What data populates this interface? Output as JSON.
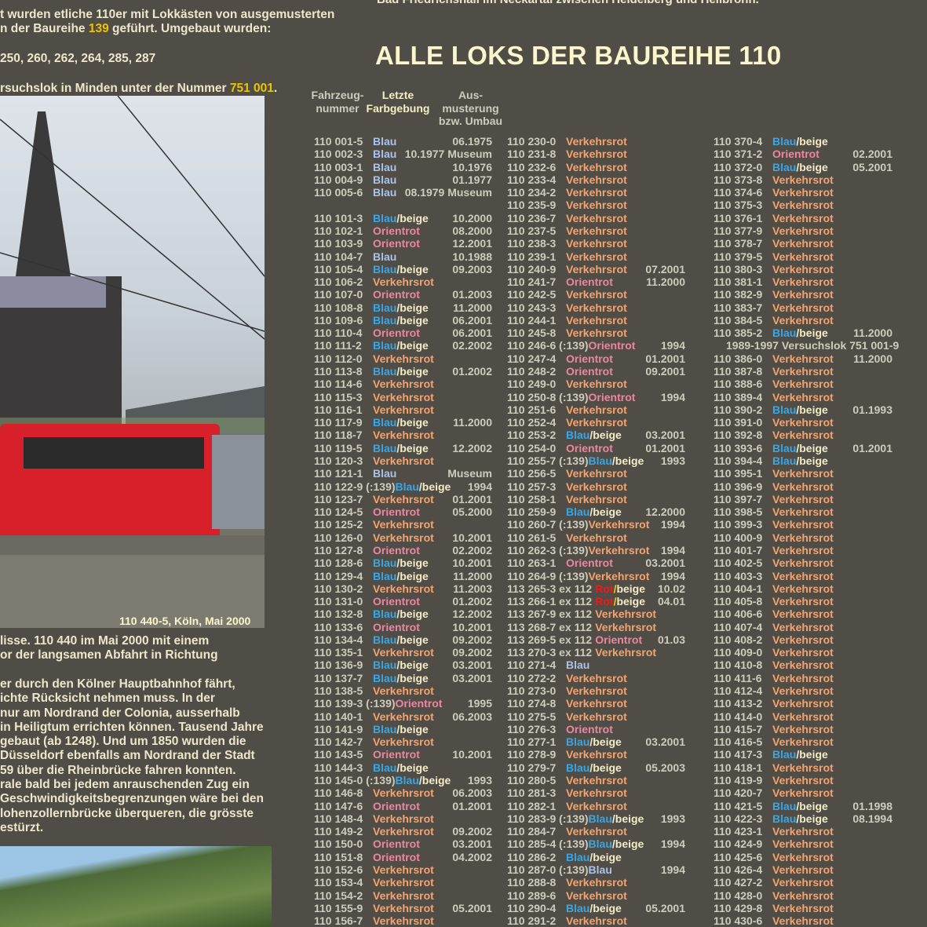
{
  "left_text": {
    "lines_top": [
      [
        "t wurden etliche 110er mit Lokkästen von ausgemusterten",
        "",
        ""
      ],
      [
        "n der Baureihe ",
        "139",
        " geführt. Umgebaut wurden:"
      ],
      [
        "250, 260, 262, 264, 285, 287",
        "",
        ""
      ],
      [
        "rsuchslok in Minden unter der Nummer ",
        "751 001",
        "."
      ]
    ],
    "caption": "110 440-5, Köln, Mai 2000",
    "lines_bottom": [
      "lisse. 110 440 im Mai 2000 mit einem",
      "or der langsamen Abfahrt in Richtung",
      "",
      "er durch den Kölner Hauptbahnhof fährt,",
      "ichte Rücksicht nehmen muss. In der",
      "nur am Nordrand der Colonia, ausserhalb",
      "in Heiligtum errichten können. Tausend Jahre",
      "gebaut (ab 1248). Und um 1850 wurden die",
      "Düsseldorf ebenfalls am Nordrand der Stadt",
      "59 über die Rheinbrücke fahren konnten.",
      "rale bald bei jedem anrauschenden Zug ein",
      "Geschwindigkeitsbegrenzungen wäre bei den",
      "lohenzollernbrücke überqueren, die grösste",
      "estürzt."
    ]
  },
  "top_text": "Bad Friedrichshall im Neckartal zwischen Heidelberg und Heilbronn.",
  "title": "ALLE LOKS DER BAUREIHE 110",
  "headers": {
    "number": "Fahrzeug-\nnummer",
    "color": "Letzte\nFarbgebung",
    "date": "Aus-\nmusterung\nbzw. Umbau"
  },
  "liveries": {
    "B": {
      "parts": [
        [
          "Blau",
          "#a9c3ea"
        ]
      ]
    },
    "BB": {
      "parts": [
        [
          "Blau",
          "#3aa6e6"
        ],
        [
          "/",
          "#f4ecc8"
        ],
        [
          "beige",
          "#f4ecc8"
        ]
      ]
    },
    "O": {
      "parts": [
        [
          "Orientrot",
          "#ec86a2"
        ]
      ]
    },
    "V": {
      "parts": [
        [
          "Verkehrsrot",
          "#f4a472"
        ]
      ]
    },
    "RB": {
      "parts": [
        [
          "Rot",
          "#e81c1c"
        ],
        [
          "/",
          "#e8c800"
        ],
        [
          "beige",
          "#f4ecc8"
        ]
      ]
    }
  },
  "columns": [
    [
      [
        "110 001-5",
        "",
        "B",
        "06.1975"
      ],
      [
        "110 002-3",
        "",
        "B",
        "10.1977 Museum"
      ],
      [
        "110 003-1",
        "",
        "B",
        "10.1976"
      ],
      [
        "110 004-9",
        "",
        "B",
        "01.1977"
      ],
      [
        "110 005-6",
        "",
        "B",
        "08.1979 Museum"
      ],
      null,
      [
        "110 101-3",
        "",
        "BB",
        "10.2000"
      ],
      [
        "110 102-1",
        "",
        "O",
        "08.2000"
      ],
      [
        "110 103-9",
        "",
        "O",
        "12.2001"
      ],
      [
        "110 104-7",
        "",
        "B",
        "10.1988"
      ],
      [
        "110 105-4",
        "",
        "BB",
        "09.2003"
      ],
      [
        "110 106-2",
        "",
        "V",
        ""
      ],
      [
        "110 107-0",
        "",
        "O",
        "01.2003"
      ],
      [
        "110 108-8",
        "",
        "BB",
        "11.2000"
      ],
      [
        "110 109-6",
        "",
        "BB",
        "06.2001"
      ],
      [
        "110 110-4",
        "",
        "O",
        "06.2001"
      ],
      [
        "110 111-2",
        "",
        "BB",
        "02.2002"
      ],
      [
        "110 112-0",
        "",
        "V",
        ""
      ],
      [
        "110 113-8",
        "",
        "BB",
        "01.2002"
      ],
      [
        "110 114-6",
        "",
        "V",
        ""
      ],
      [
        "110 115-3",
        "",
        "V",
        ""
      ],
      [
        "110 116-1",
        "",
        "V",
        ""
      ],
      [
        "110 117-9",
        "",
        "BB",
        "11.2000"
      ],
      [
        "110 118-7",
        "",
        "V",
        ""
      ],
      [
        "110 119-5",
        "",
        "BB",
        "12.2002"
      ],
      [
        "110 120-3",
        "",
        "V",
        ""
      ],
      [
        "110 121-1",
        "",
        "B",
        "Museum"
      ],
      [
        "110 122-9",
        "(:139)",
        "BB",
        "1994"
      ],
      [
        "110 123-7",
        "",
        "V",
        "01.2001"
      ],
      [
        "110 124-5",
        "",
        "O",
        "05.2000"
      ],
      [
        "110 125-2",
        "",
        "V",
        ""
      ],
      [
        "110 126-0",
        "",
        "V",
        "10.2001"
      ],
      [
        "110 127-8",
        "",
        "O",
        "02.2002"
      ],
      [
        "110 128-6",
        "",
        "BB",
        "10.2001"
      ],
      [
        "110 129-4",
        "",
        "BB",
        "11.2000"
      ],
      [
        "110 130-2",
        "",
        "V",
        "11.2003"
      ],
      [
        "110 131-0",
        "",
        "O",
        "01.2002"
      ],
      [
        "110 132-8",
        "",
        "BB",
        "12.2002"
      ],
      [
        "110 133-6",
        "",
        "O",
        "10.2001"
      ],
      [
        "110 134-4",
        "",
        "BB",
        "09.2002"
      ],
      [
        "110 135-1",
        "",
        "V",
        "09.2002"
      ],
      [
        "110 136-9",
        "",
        "BB",
        "03.2001"
      ],
      [
        "110 137-7",
        "",
        "BB",
        "03.2001"
      ],
      [
        "110 138-5",
        "",
        "V",
        ""
      ],
      [
        "110 139-3",
        "(:139)",
        "O",
        "1995"
      ],
      [
        "110 140-1",
        "",
        "V",
        "06.2003"
      ],
      [
        "110 141-9",
        "",
        "BB",
        ""
      ],
      [
        "110 142-7",
        "",
        "V",
        ""
      ],
      [
        "110 143-5",
        "",
        "O",
        "10.2001"
      ],
      [
        "110 144-3",
        "",
        "BB",
        ""
      ],
      [
        "110 145-0",
        "(:139)",
        "BB",
        "1993"
      ],
      [
        "110 146-8",
        "",
        "V",
        "06.2003"
      ],
      [
        "110 147-6",
        "",
        "O",
        "01.2001"
      ],
      [
        "110 148-4",
        "",
        "V",
        ""
      ],
      [
        "110 149-2",
        "",
        "V",
        "09.2002"
      ],
      [
        "110 150-0",
        "",
        "O",
        "03.2001"
      ],
      [
        "110 151-8",
        "",
        "O",
        "04.2002"
      ],
      [
        "110 152-6",
        "",
        "V",
        ""
      ],
      [
        "110 153-4",
        "",
        "V",
        ""
      ],
      [
        "110 154-2",
        "",
        "V",
        ""
      ],
      [
        "110 155-9",
        "",
        "V",
        "05.2001"
      ],
      [
        "110 156-7",
        "",
        "V",
        ""
      ]
    ],
    [
      [
        "110 230-0",
        "",
        "V",
        ""
      ],
      [
        "110 231-8",
        "",
        "V",
        ""
      ],
      [
        "110 232-6",
        "",
        "V",
        ""
      ],
      [
        "110 233-4",
        "",
        "V",
        ""
      ],
      [
        "110 234-2",
        "",
        "V",
        ""
      ],
      [
        "110 235-9",
        "",
        "V",
        ""
      ],
      [
        "110 236-7",
        "",
        "V",
        ""
      ],
      [
        "110 237-5",
        "",
        "V",
        ""
      ],
      [
        "110 238-3",
        "",
        "V",
        ""
      ],
      [
        "110 239-1",
        "",
        "V",
        ""
      ],
      [
        "110 240-9",
        "",
        "V",
        "07.2001"
      ],
      [
        "110 241-7",
        "",
        "O",
        "11.2000"
      ],
      [
        "110 242-5",
        "",
        "V",
        ""
      ],
      [
        "110 243-3",
        "",
        "V",
        ""
      ],
      [
        "110 244-1",
        "",
        "V",
        ""
      ],
      [
        "110 245-8",
        "",
        "V",
        ""
      ],
      [
        "110 246-6",
        "(:139)",
        "O",
        "1994"
      ],
      [
        "110 247-4",
        "",
        "O",
        "01.2001"
      ],
      [
        "110 248-2",
        "",
        "O",
        "09.2001"
      ],
      [
        "110 249-0",
        "",
        "V",
        ""
      ],
      [
        "110 250-8",
        "(:139)",
        "O",
        "1994"
      ],
      [
        "110 251-6",
        "",
        "V",
        ""
      ],
      [
        "110 252-4",
        "",
        "V",
        ""
      ],
      [
        "110 253-2",
        "",
        "BB",
        "03.2001"
      ],
      [
        "110 254-0",
        "",
        "O",
        "01.2001"
      ],
      [
        "110 255-7",
        "(:139)",
        "BB",
        "1993"
      ],
      [
        "110 256-5",
        "",
        "V",
        ""
      ],
      [
        "110 257-3",
        "",
        "V",
        ""
      ],
      [
        "110 258-1",
        "",
        "V",
        ""
      ],
      [
        "110 259-9",
        "",
        "BB",
        "12.2000"
      ],
      [
        "110 260-7",
        "(:139)",
        "V",
        "1994"
      ],
      [
        "110 261-5",
        "",
        "V",
        ""
      ],
      [
        "110 262-3",
        "(:139)",
        "V",
        "1994"
      ],
      [
        "110 263-1",
        "",
        "O",
        "03.2001"
      ],
      [
        "110 264-9",
        "(:139)",
        "V",
        "1994"
      ],
      [
        "113 265-3",
        "ex 112",
        "RB",
        "10.02"
      ],
      [
        "113 266-1",
        "ex 112",
        "RB",
        "04.01"
      ],
      [
        "113 267-9",
        "ex 112",
        "V",
        ""
      ],
      [
        "113 268-7",
        "ex 112",
        "V",
        ""
      ],
      [
        "113 269-5",
        "ex 112",
        "O",
        "01.03"
      ],
      [
        "113 270-3",
        "ex 112",
        "V",
        ""
      ],
      [
        "110 271-4",
        "",
        "B",
        ""
      ],
      [
        "110 272-2",
        "",
        "V",
        ""
      ],
      [
        "110 273-0",
        "",
        "V",
        ""
      ],
      [
        "110 274-8",
        "",
        "V",
        ""
      ],
      [
        "110 275-5",
        "",
        "V",
        ""
      ],
      [
        "110 276-3",
        "",
        "O",
        ""
      ],
      [
        "110 277-1",
        "",
        "BB",
        "03.2001"
      ],
      [
        "110 278-9",
        "",
        "V",
        ""
      ],
      [
        "110 279-7",
        "",
        "BB",
        "05.2003"
      ],
      [
        "110 280-5",
        "",
        "V",
        ""
      ],
      [
        "110 281-3",
        "",
        "V",
        ""
      ],
      [
        "110 282-1",
        "",
        "V",
        ""
      ],
      [
        "110 283-9",
        "(:139)",
        "BB",
        "1993"
      ],
      [
        "110 284-7",
        "",
        "V",
        ""
      ],
      [
        "110 285-4",
        "(:139)",
        "BB",
        "1994"
      ],
      [
        "110 286-2",
        "",
        "BB",
        ""
      ],
      [
        "110 287-0",
        "(:139)",
        "B",
        "1994"
      ],
      [
        "110 288-8",
        "",
        "V",
        ""
      ],
      [
        "110 289-6",
        "",
        "V",
        ""
      ],
      [
        "110 290-4",
        "",
        "BB",
        "05.2001"
      ],
      [
        "110 291-2",
        "",
        "V",
        ""
      ]
    ],
    [
      [
        "110 370-4",
        "",
        "BB",
        ""
      ],
      [
        "110 371-2",
        "",
        "O",
        "02.2001"
      ],
      [
        "110 372-0",
        "",
        "BB",
        "05.2001"
      ],
      [
        "110 373-8",
        "",
        "V",
        ""
      ],
      [
        "110 374-6",
        "",
        "V",
        ""
      ],
      [
        "110 375-3",
        "",
        "V",
        ""
      ],
      [
        "110 376-1",
        "",
        "V",
        ""
      ],
      [
        "110 377-9",
        "",
        "V",
        ""
      ],
      [
        "110 378-7",
        "",
        "V",
        ""
      ],
      [
        "110 379-5",
        "",
        "V",
        ""
      ],
      [
        "110 380-3",
        "",
        "V",
        ""
      ],
      [
        "110 381-1",
        "",
        "V",
        ""
      ],
      [
        "110 382-9",
        "",
        "V",
        ""
      ],
      [
        "110 383-7",
        "",
        "V",
        ""
      ],
      [
        "110 384-5",
        "",
        "V",
        ""
      ],
      [
        "110 385-2",
        "",
        "BB",
        "11.2000"
      ],
      {
        "note": "1989-1997 Versuchslok 751 001-9"
      },
      [
        "110 386-0",
        "",
        "V",
        "11.2000"
      ],
      [
        "110 387-8",
        "",
        "V",
        ""
      ],
      [
        "110 388-6",
        "",
        "V",
        ""
      ],
      [
        "110 389-4",
        "",
        "V",
        ""
      ],
      [
        "110 390-2",
        "",
        "BB",
        "01.1993"
      ],
      [
        "110 391-0",
        "",
        "V",
        ""
      ],
      [
        "110 392-8",
        "",
        "V",
        ""
      ],
      [
        "110 393-6",
        "",
        "BB",
        "01.2001"
      ],
      [
        "110 394-4",
        "",
        "BB",
        ""
      ],
      [
        "110 395-1",
        "",
        "V",
        ""
      ],
      [
        "110 396-9",
        "",
        "V",
        ""
      ],
      [
        "110 397-7",
        "",
        "V",
        ""
      ],
      [
        "110 398-5",
        "",
        "V",
        ""
      ],
      [
        "110 399-3",
        "",
        "V",
        ""
      ],
      [
        "110 400-9",
        "",
        "V",
        ""
      ],
      [
        "110 401-7",
        "",
        "V",
        ""
      ],
      [
        "110 402-5",
        "",
        "V",
        ""
      ],
      [
        "110 403-3",
        "",
        "V",
        ""
      ],
      [
        "110 404-1",
        "",
        "V",
        ""
      ],
      [
        "110 405-8",
        "",
        "V",
        ""
      ],
      [
        "110 406-6",
        "",
        "V",
        ""
      ],
      [
        "110 407-4",
        "",
        "V",
        ""
      ],
      [
        "110 408-2",
        "",
        "V",
        ""
      ],
      [
        "110 409-0",
        "",
        "V",
        ""
      ],
      [
        "110 410-8",
        "",
        "V",
        ""
      ],
      [
        "110 411-6",
        "",
        "V",
        ""
      ],
      [
        "110 412-4",
        "",
        "V",
        ""
      ],
      [
        "110 413-2",
        "",
        "V",
        ""
      ],
      [
        "110 414-0",
        "",
        "V",
        ""
      ],
      [
        "110 415-7",
        "",
        "V",
        ""
      ],
      [
        "110 416-5",
        "",
        "V",
        ""
      ],
      [
        "110 417-3",
        "",
        "BB",
        ""
      ],
      [
        "110 418-1",
        "",
        "V",
        ""
      ],
      [
        "110 419-9",
        "",
        "V",
        ""
      ],
      [
        "110 420-7",
        "",
        "V",
        ""
      ],
      [
        "110 421-5",
        "",
        "BB",
        "01.1998"
      ],
      [
        "110 422-3",
        "",
        "BB",
        "08.1994"
      ],
      [
        "110 423-1",
        "",
        "V",
        ""
      ],
      [
        "110 424-9",
        "",
        "V",
        ""
      ],
      [
        "110 425-6",
        "",
        "V",
        ""
      ],
      [
        "110 426-4",
        "",
        "V",
        ""
      ],
      [
        "110 427-2",
        "",
        "V",
        ""
      ],
      [
        "110 428-0",
        "",
        "V",
        ""
      ],
      [
        "110 429-8",
        "",
        "V",
        ""
      ],
      [
        "110 430-6",
        "",
        "V",
        ""
      ]
    ]
  ]
}
